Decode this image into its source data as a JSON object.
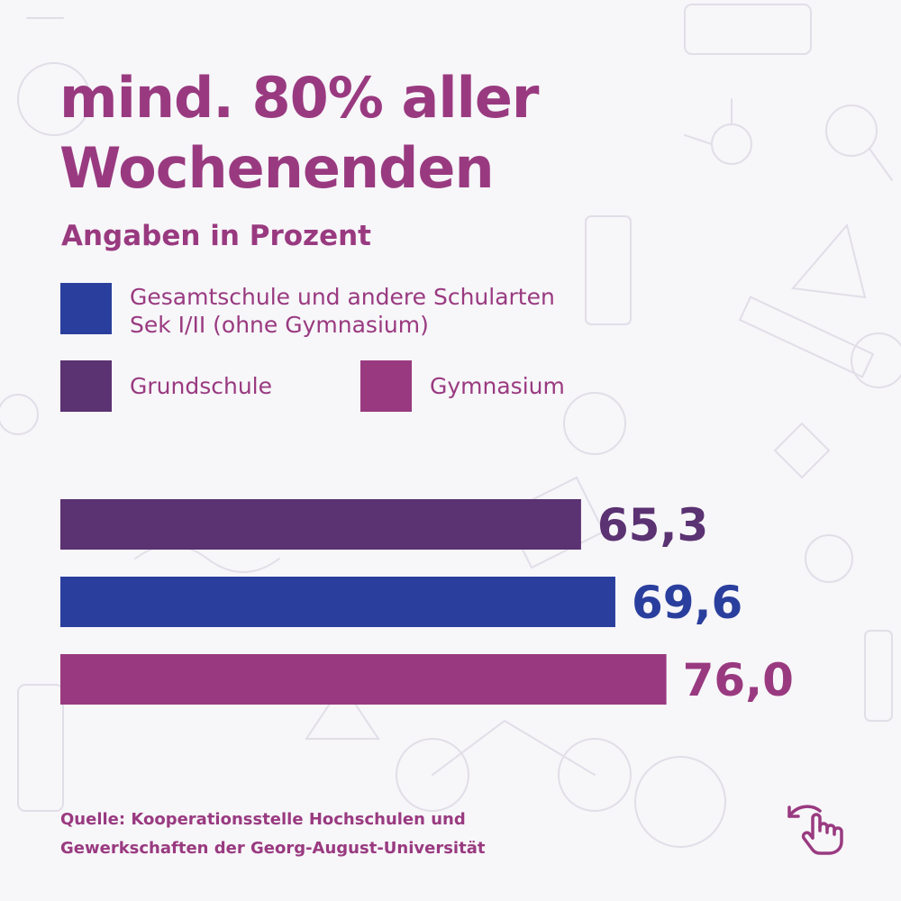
{
  "title_lines": [
    "mind. 80% aller",
    "Wochenenden"
  ],
  "subtitle": "Angaben in Prozent",
  "legend": [
    {
      "label_lines": [
        "Gesamtschule und andere Schularten",
        "Sek I/II (ohne Gymnasium)"
      ],
      "color": "#2a3f9d"
    },
    {
      "label": "Grundschule",
      "color": "#5b3272"
    },
    {
      "label": "Gymnasium",
      "color": "#993a80"
    }
  ],
  "chart_data": {
    "type": "bar",
    "orientation": "horizontal",
    "categories": [
      "Grundschule",
      "Gesamtschule und andere Schularten Sek I/II (ohne Gymnasium)",
      "Gymnasium"
    ],
    "values": [
      65.3,
      69.6,
      76.0
    ],
    "value_labels": [
      "65,3",
      "69,6",
      "76,0"
    ],
    "colors": [
      "#5b3272",
      "#2a3f9d",
      "#993a80"
    ],
    "xlim": [
      0,
      100
    ],
    "legend_position": "top-left",
    "grid": false
  },
  "source_lines": [
    "Quelle: Kooperationsstelle Hochschulen und",
    "Gewerkschaften der Georg-August-Universität"
  ],
  "icons": {
    "swipe": "swipe-left-hand-icon"
  },
  "colors": {
    "accent": "#993a80",
    "background": "#f7f6f9"
  }
}
